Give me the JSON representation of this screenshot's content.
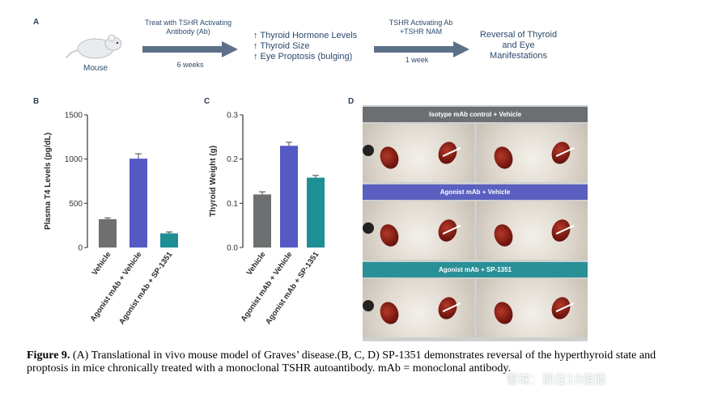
{
  "panelA": {
    "letter": "A",
    "mouse_label": "Mouse",
    "step1_top": "Treat with TSHR Activating",
    "step1_top2": "Antibody (Ab)",
    "step1_bottom": "6 weeks",
    "effects": [
      "↑ Thyroid Hormone Levels",
      "↑ Thyroid Size",
      "↑ Eye Proptosis (bulging)"
    ],
    "step2_top": "TSHR Activating Ab",
    "step2_top2": "+TSHR NAM",
    "step2_bottom": "1 week",
    "outcome": [
      "Reversal of Thyroid",
      "and Eye",
      "Manifestations"
    ]
  },
  "panelB_letter": "B",
  "panelC_letter": "C",
  "panelD": {
    "letter": "D",
    "bars": [
      "Isotype mAb control + Vehicle",
      "Agonist mAb + Vehicle",
      "Agonist mAb + SP-1351"
    ],
    "bar_colors": [
      "#6c6f72",
      "#5a5fc0",
      "#2a9098"
    ]
  },
  "chart_data": [
    {
      "type": "bar",
      "title": "",
      "ylabel": "Plasma T4 Levels (pg/dL)",
      "xlabel": "",
      "categories": [
        "Vehicle",
        "Agonist mAb + Vehicle",
        "Agonist mAb + SP-1351"
      ],
      "values": [
        320,
        1005,
        160
      ],
      "errors": [
        15,
        55,
        15
      ],
      "ylim": [
        0,
        1500
      ],
      "yticks": [
        "0",
        "500",
        "1000",
        "1500"
      ],
      "colors": [
        "#6d6f70",
        "#5559c4",
        "#1e8f95"
      ]
    },
    {
      "type": "bar",
      "title": "",
      "ylabel": "Thyroid Weight (g)",
      "xlabel": "",
      "categories": [
        "Vehicle",
        "Agonist mAb + Vehicle",
        "Agonist mAb + SP-1351"
      ],
      "values": [
        0.12,
        0.23,
        0.158
      ],
      "errors": [
        0.006,
        0.008,
        0.005
      ],
      "ylim": [
        0,
        0.3
      ],
      "yticks": [
        "0.0",
        "0.1",
        "0.2",
        "0.3"
      ],
      "colors": [
        "#6d6f70",
        "#5559c4",
        "#1e8f95"
      ]
    }
  ],
  "caption": {
    "label": "Figure 9.",
    "text": " (A) Translational in vivo mouse model of Graves’ disease.(B, C, D) SP-1351 demonstrates reversal of the hyperthyroid state and proptosis in mice chronically treated with a monoclonal TSHR autoantibody. mAb = monoclonal antibody."
  },
  "watermark": "雪球：抓住10倍股"
}
